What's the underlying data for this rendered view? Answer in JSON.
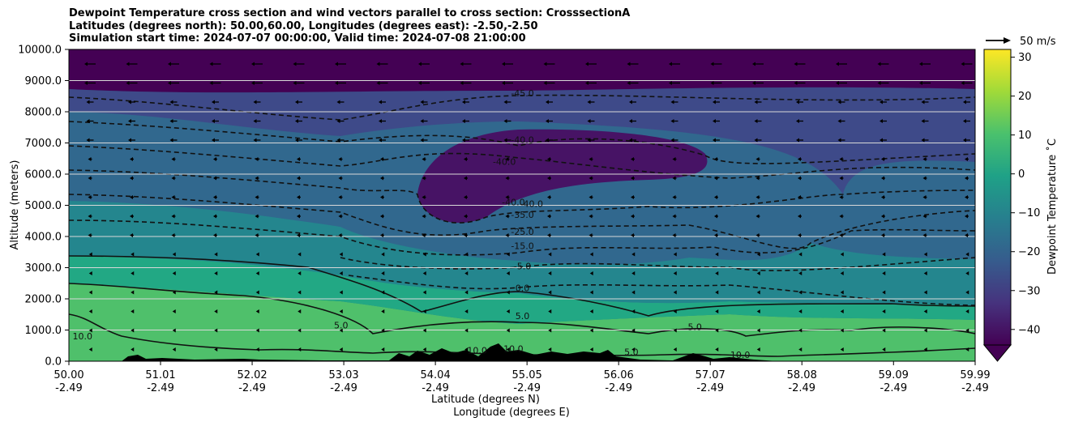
{
  "chart_data": {
    "type": "heatmap",
    "title": [
      "Dewpoint Temperature cross section and wind vectors parallel to cross section: CrosssectionA",
      "Latitudes (degrees north): 50.00,60.00, Longitudes (degrees east): -2.50,-2.50",
      "Simulation start time: 2024-07-07 00:00:00, Valid time: 2024-07-08 21:00:00"
    ],
    "ylabel": "Altitude (meters)",
    "xlabel_lines": [
      "Latitude (degrees N)",
      "Longitude (degrees E)"
    ],
    "ylim": [
      0,
      10000
    ],
    "y_ticks": [
      "0.0",
      "1000.0",
      "2000.0",
      "3000.0",
      "4000.0",
      "5000.0",
      "6000.0",
      "7000.0",
      "8000.0",
      "9000.0",
      "10000.0"
    ],
    "x_ticks_lat": [
      "50.00",
      "51.01",
      "52.02",
      "53.03",
      "54.04",
      "55.05",
      "56.06",
      "57.07",
      "58.08",
      "59.09",
      "59.99"
    ],
    "x_ticks_lon": [
      "-2.49",
      "-2.49",
      "-2.49",
      "-2.49",
      "-2.49",
      "-2.49",
      "-2.49",
      "-2.49",
      "-2.49",
      "-2.49",
      "-2.49"
    ],
    "grid": "horizontal",
    "colorbar": {
      "label": "Dewpoint Temperature ˚C",
      "ticks": [
        "−40",
        "−30",
        "−20",
        "−10",
        "0",
        "10",
        "20",
        "30"
      ],
      "range": [
        -44,
        32
      ],
      "extend": "min",
      "colors": [
        "#440154",
        "#46337e",
        "#365c8d",
        "#277f8e",
        "#1fa187",
        "#4ac16d",
        "#a0da39",
        "#fde725"
      ]
    },
    "wind_key": "50 m/s",
    "contour_labels": [
      {
        "text": "-45.0",
        "lat": 55.0,
        "alt": 8500
      },
      {
        "text": "-40.0",
        "lat": 55.0,
        "alt": 7000
      },
      {
        "text": "-40.0",
        "lat": 54.8,
        "alt": 6300
      },
      {
        "text": "-40.0",
        "lat": 54.9,
        "alt": 5000
      },
      {
        "text": "-40.0",
        "lat": 55.1,
        "alt": 4950
      },
      {
        "text": "-35.0",
        "lat": 55.0,
        "alt": 4600
      },
      {
        "text": "-25.0",
        "lat": 55.0,
        "alt": 4050
      },
      {
        "text": "-15.0",
        "lat": 55.0,
        "alt": 3600
      },
      {
        "text": "-5.0",
        "lat": 55.0,
        "alt": 2950
      },
      {
        "text": "0.0",
        "lat": 55.0,
        "alt": 2250
      },
      {
        "text": "5.0",
        "lat": 55.0,
        "alt": 1350
      },
      {
        "text": "5.0",
        "lat": 53.0,
        "alt": 1050
      },
      {
        "text": "5.0",
        "lat": 56.9,
        "alt": 1000
      },
      {
        "text": "5.0",
        "lat": 56.2,
        "alt": 200
      },
      {
        "text": "10.0",
        "lat": 50.15,
        "alt": 700
      },
      {
        "text": "10.0",
        "lat": 54.5,
        "alt": 250
      },
      {
        "text": "10.0",
        "lat": 54.9,
        "alt": 300
      },
      {
        "text": "10.0",
        "lat": 57.4,
        "alt": 100
      }
    ]
  }
}
